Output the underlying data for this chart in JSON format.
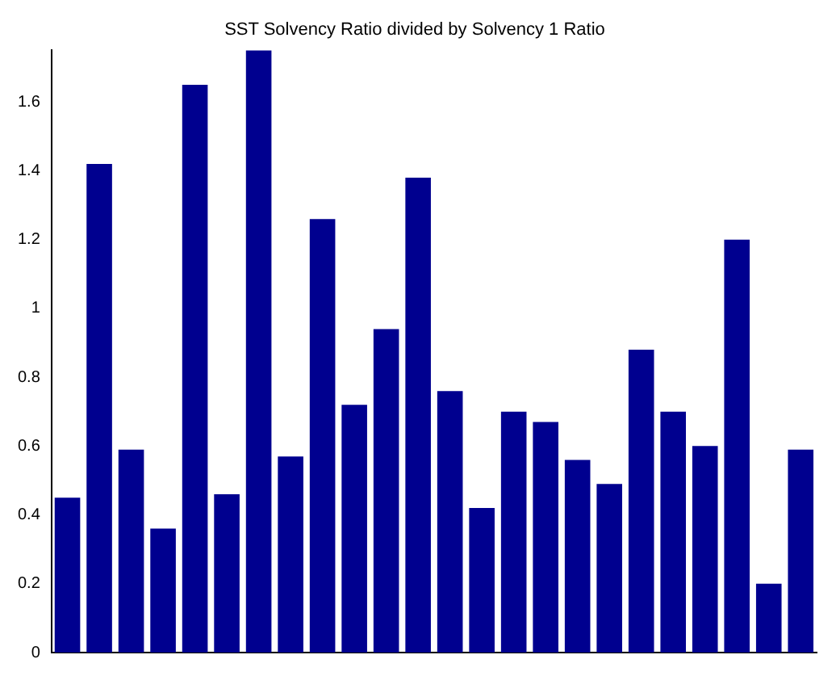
{
  "chart_data": {
    "type": "bar",
    "title": "SST Solvency Ratio divided by Solvency 1 Ratio",
    "categories": [
      null,
      null,
      null,
      null,
      null,
      null,
      null,
      null,
      null,
      null,
      null,
      null,
      null,
      null,
      null,
      null,
      null,
      null,
      null,
      null,
      null,
      null,
      null,
      null
    ],
    "values": [
      0.45,
      1.42,
      0.59,
      0.36,
      1.65,
      0.46,
      1.75,
      0.57,
      1.26,
      0.72,
      0.94,
      1.38,
      0.76,
      0.42,
      0.7,
      0.67,
      0.56,
      0.49,
      0.88,
      0.7,
      0.6,
      1.2,
      0.2,
      0.59
    ],
    "color": "#00008f",
    "ylim": [
      0,
      1.75
    ],
    "yticks": [
      0,
      0.2,
      0.4,
      0.6,
      0.8,
      1,
      1.2,
      1.4,
      1.6
    ],
    "grid": false
  }
}
